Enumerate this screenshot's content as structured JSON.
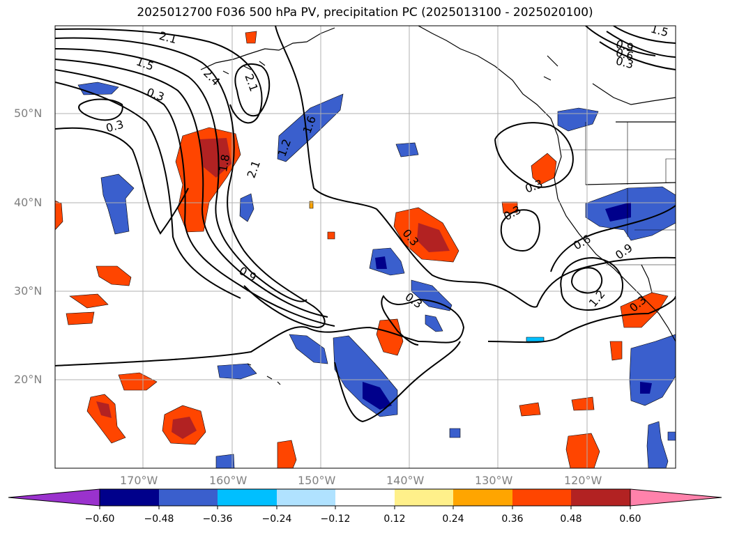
{
  "title": "2025012700 F036 500 hPa PV, precipitation PC (2025013100 - 2025020100)",
  "lat_labels": [
    "50°N",
    "40°N",
    "30°N",
    "20°N"
  ],
  "lon_labels": [
    "170°W",
    "160°W",
    "150°W",
    "140°W",
    "130°W",
    "120°W"
  ],
  "colorbar": {
    "ticks": [
      "−0.60",
      "−0.48",
      "−0.36",
      "−0.24",
      "−0.12",
      "0.12",
      "0.24",
      "0.36",
      "0.48",
      "0.60"
    ],
    "colors": [
      "#9a32cd",
      "#00008b",
      "#3a5fcd",
      "#00bfff",
      "#b0e2ff",
      "#ffffff",
      "#fff08a",
      "#ffa500",
      "#ff4500",
      "#b22222",
      "#ff82ab"
    ]
  },
  "contour_labels": [
    "2.1",
    "1.5",
    "0.3",
    "0.3",
    "2.4",
    "2.1",
    "1.6",
    "1.8",
    "2.1",
    "1.2",
    "1.5",
    "0.9",
    "0.6",
    "0.3",
    "0.3",
    "0.3",
    "0.6",
    "0.9",
    "1.2",
    "0.3",
    "0.9",
    "0.3",
    "0.3"
  ]
}
